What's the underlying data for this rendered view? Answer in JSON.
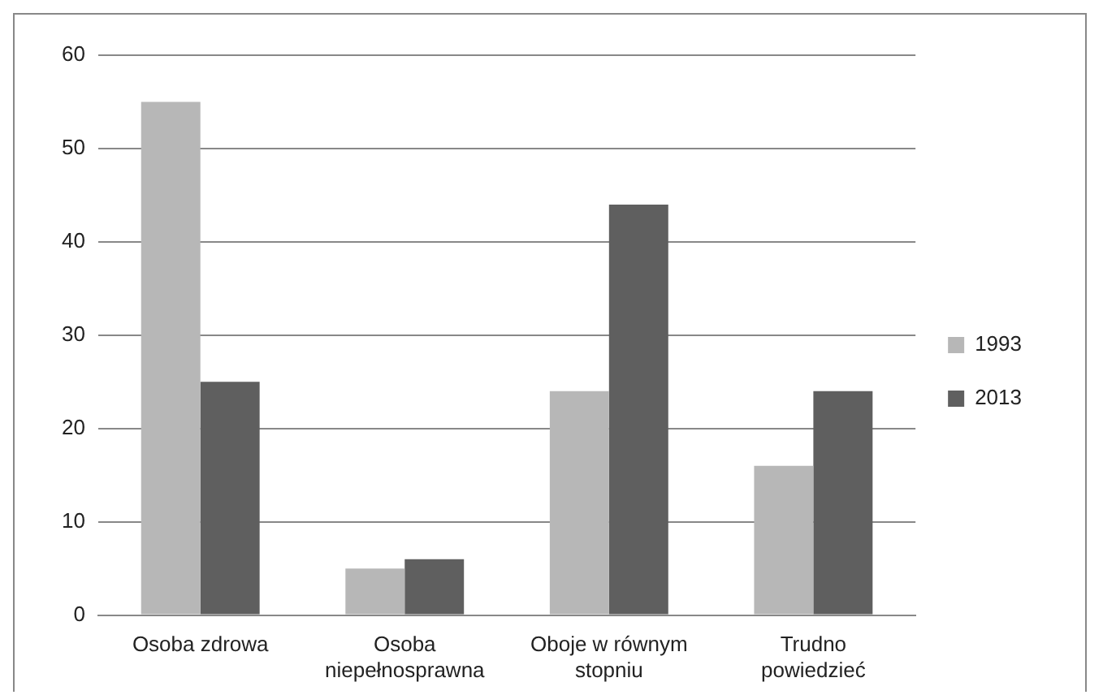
{
  "chart_data": {
    "type": "bar",
    "categories": [
      "Osoba zdrowa",
      "Osoba niepełnosprawna",
      "Oboje w równym stopniu",
      "Trudno powiedzieć"
    ],
    "series": [
      {
        "name": "1993",
        "color": "#b7b7b7",
        "values": [
          55,
          5,
          24,
          16
        ]
      },
      {
        "name": "2013",
        "color": "#5f5f5f",
        "values": [
          25,
          6,
          44,
          24
        ]
      }
    ],
    "ylim": [
      0,
      60
    ],
    "yticks": [
      0,
      10,
      20,
      30,
      40,
      50,
      60
    ],
    "grid": "y",
    "legend": "right"
  }
}
